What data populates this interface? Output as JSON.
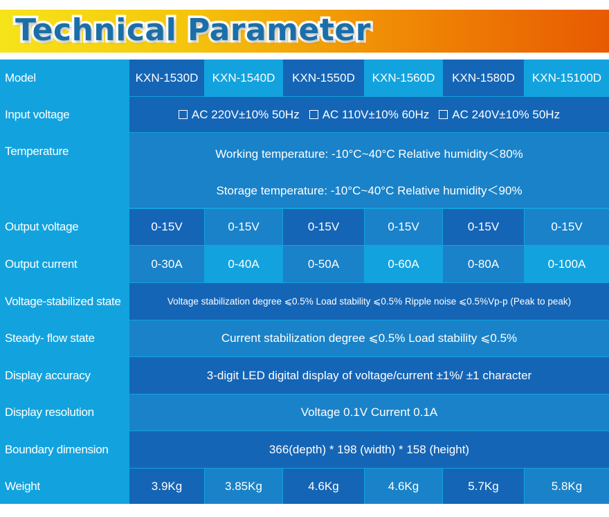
{
  "header": {
    "title": "Technical Parameter"
  },
  "table": {
    "models": {
      "label": "Model",
      "values": [
        "KXN-1530D",
        "KXN-1540D",
        "KXN-1550D",
        "KXN-1560D",
        "KXN-1580D",
        "KXN-15100D"
      ]
    },
    "input_voltage": {
      "label": "Input voltage",
      "options": [
        "AC 220V±10% 50Hz",
        "AC 110V±10% 60Hz",
        "AC 240V±10% 50Hz"
      ]
    },
    "temperature": {
      "label": "Temperature",
      "working": "Working temperature: -10°C~40°C Relative humidity＜80%",
      "storage": "Storage temperature: -10°C~40°C Relative humidity＜90%"
    },
    "output_voltage": {
      "label": "Output voltage",
      "values": [
        "0-15V",
        "0-15V",
        "0-15V",
        "0-15V",
        "0-15V",
        "0-15V"
      ]
    },
    "output_current": {
      "label": "Output current",
      "values": [
        "0-30A",
        "0-40A",
        "0-50A",
        "0-60A",
        "0-80A",
        "0-100A"
      ]
    },
    "voltage_stabilized": {
      "label": "Voltage-stabilized state",
      "value": "Voltage stabilization degree ⩽0.5%  Load stability ⩽0.5%  Ripple noise ⩽0.5%Vp-p (Peak to peak)"
    },
    "steady_flow": {
      "label": "Steady- flow state",
      "value": "Current stabilization degree ⩽0.5%  Load stability ⩽0.5%"
    },
    "display_accuracy": {
      "label": "Display accuracy",
      "value": "3-digit LED digital display of voltage/current ±1%/ ±1 character"
    },
    "display_resolution": {
      "label": "Display resolution",
      "value": "Voltage 0.1V  Current 0.1A"
    },
    "boundary_dimension": {
      "label": "Boundary dimension",
      "value": "366(depth) * 198 (width) * 158 (height)"
    },
    "weight": {
      "label": "Weight",
      "values": [
        "3.9Kg",
        "3.85Kg",
        "4.6Kg",
        "4.6Kg",
        "5.7Kg",
        "5.8Kg"
      ]
    }
  }
}
